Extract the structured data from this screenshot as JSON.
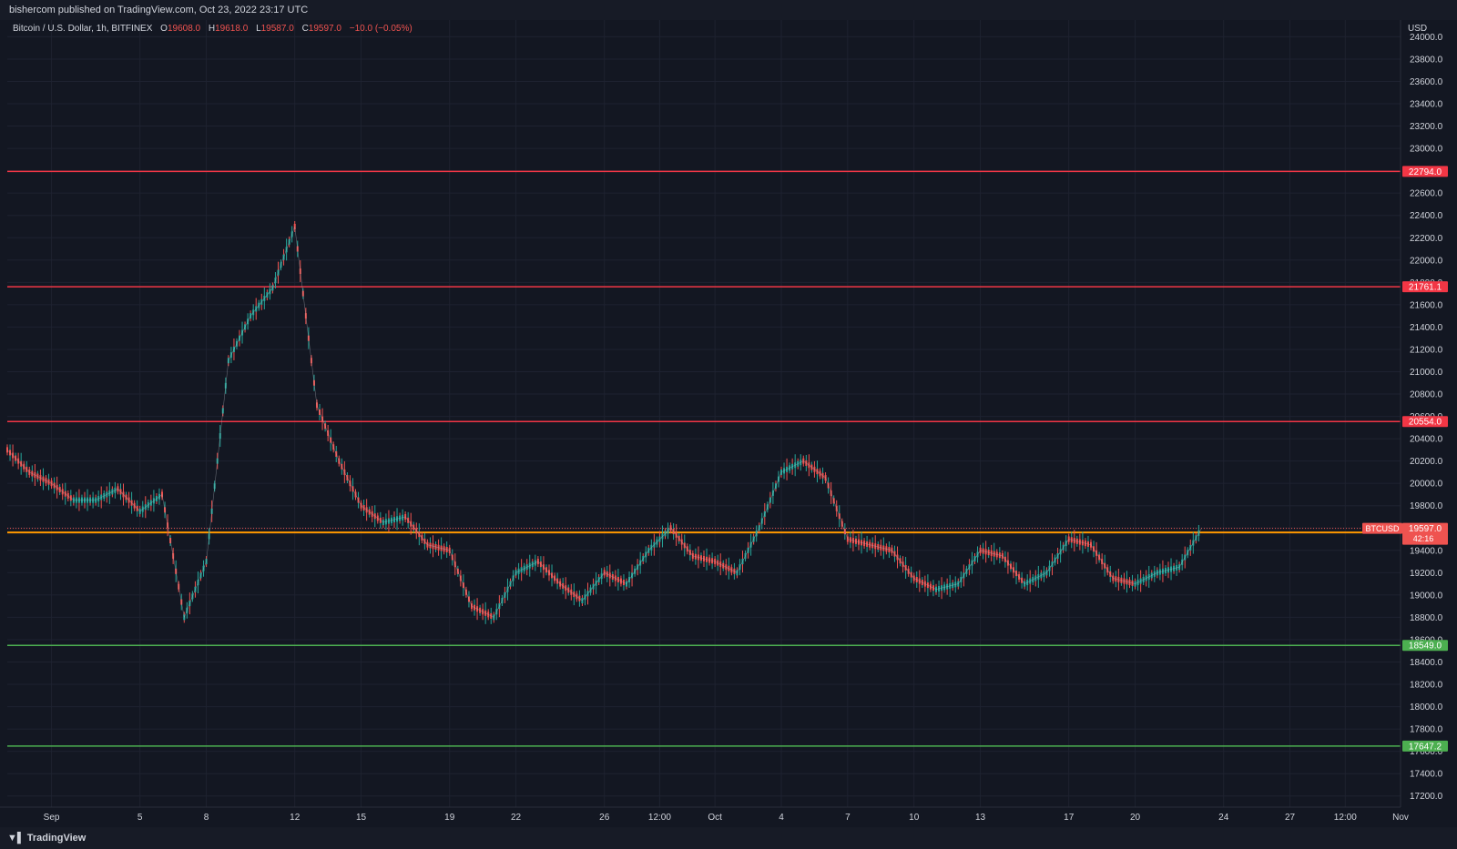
{
  "publisher_line": "bishercom published on TradingView.com, Oct 23, 2022 23:17 UTC",
  "brand": "TradingView",
  "legend": {
    "symbol": "Bitcoin / U.S. Dollar, 1h, BITFINEX",
    "o_label": "O",
    "o_value": "19608.0",
    "h_label": "H",
    "h_value": "19618.0",
    "l_label": "L",
    "l_value": "19587.0",
    "c_label": "C",
    "c_value": "19597.0",
    "change": "−10.0 (−0.05%)"
  },
  "colors": {
    "up": "#26a69a",
    "down": "#ef5350",
    "resistance": "#f23645",
    "support": "#4caf50",
    "mid": "#ff9800",
    "background": "#131722",
    "grid": "#1e2230"
  },
  "chart_data": {
    "type": "line",
    "title": "Bitcoin / U.S. Dollar, 1h, BITFINEX",
    "currency": "USD",
    "x_range": [
      "2022-08-30",
      "2022-11-01"
    ],
    "ylim": [
      17100,
      24150
    ],
    "y_ticks": [
      "17200.0",
      "17400.0",
      "17600.0",
      "17800.0",
      "18000.0",
      "18200.0",
      "18400.0",
      "18600.0",
      "18800.0",
      "19000.0",
      "19200.0",
      "19400.0",
      "19600.0",
      "19800.0",
      "20000.0",
      "20200.0",
      "20400.0",
      "20600.0",
      "20800.0",
      "21000.0",
      "21200.0",
      "21400.0",
      "21600.0",
      "21800.0",
      "22000.0",
      "22200.0",
      "22400.0",
      "22600.0",
      "22800.0",
      "23000.0",
      "23200.0",
      "23400.0",
      "23600.0",
      "23800.0",
      "24000.0"
    ],
    "x_ticks": [
      {
        "date": "2022-09-01",
        "label": "Sep"
      },
      {
        "date": "2022-09-05",
        "label": "5"
      },
      {
        "date": "2022-09-08",
        "label": "8"
      },
      {
        "date": "2022-09-12",
        "label": "12"
      },
      {
        "date": "2022-09-15",
        "label": "15"
      },
      {
        "date": "2022-09-19",
        "label": "19"
      },
      {
        "date": "2022-09-22",
        "label": "22"
      },
      {
        "date": "2022-09-26",
        "label": "26"
      },
      {
        "date": "2022-09-28T12:00",
        "label": "12:00"
      },
      {
        "date": "2022-10-01",
        "label": "Oct"
      },
      {
        "date": "2022-10-04",
        "label": "4"
      },
      {
        "date": "2022-10-07",
        "label": "7"
      },
      {
        "date": "2022-10-10",
        "label": "10"
      },
      {
        "date": "2022-10-13",
        "label": "13"
      },
      {
        "date": "2022-10-17",
        "label": "17"
      },
      {
        "date": "2022-10-20",
        "label": "20"
      },
      {
        "date": "2022-10-24",
        "label": "24"
      },
      {
        "date": "2022-10-27",
        "label": "27"
      },
      {
        "date": "2022-10-29T12:00",
        "label": "12:00"
      },
      {
        "date": "2022-11-01",
        "label": "Nov"
      }
    ],
    "levels": [
      {
        "value": 22794.0,
        "label": "22794.0",
        "kind": "resistance"
      },
      {
        "value": 21761.1,
        "label": "21761.1",
        "kind": "resistance"
      },
      {
        "value": 20554.0,
        "label": "20554.0",
        "kind": "resistance"
      },
      {
        "value": 19560.0,
        "label": "19560.0",
        "kind": "mid"
      },
      {
        "value": 18549.0,
        "label": "18549.0",
        "kind": "support"
      },
      {
        "value": 17647.2,
        "label": "17647.2",
        "kind": "support"
      }
    ],
    "last_price": {
      "value": 19597.0,
      "label": "19597.0",
      "symbol": "BTCUSD",
      "countdown": "42:16"
    },
    "series": [
      {
        "x": [
          "2022-08-30",
          "2022-08-31",
          "2022-09-01",
          "2022-09-02",
          "2022-09-03",
          "2022-09-04",
          "2022-09-05",
          "2022-09-06",
          "2022-09-07",
          "2022-09-08",
          "2022-09-09",
          "2022-09-10",
          "2022-09-11",
          "2022-09-12",
          "2022-09-13",
          "2022-09-14",
          "2022-09-15",
          "2022-09-16",
          "2022-09-17",
          "2022-09-18",
          "2022-09-19",
          "2022-09-20",
          "2022-09-21",
          "2022-09-22",
          "2022-09-23",
          "2022-09-24",
          "2022-09-25",
          "2022-09-26",
          "2022-09-27",
          "2022-09-28",
          "2022-09-29",
          "2022-09-30",
          "2022-10-01",
          "2022-10-02",
          "2022-10-03",
          "2022-10-04",
          "2022-10-05",
          "2022-10-06",
          "2022-10-07",
          "2022-10-08",
          "2022-10-09",
          "2022-10-10",
          "2022-10-11",
          "2022-10-12",
          "2022-10-13",
          "2022-10-14",
          "2022-10-15",
          "2022-10-16",
          "2022-10-17",
          "2022-10-18",
          "2022-10-19",
          "2022-10-20",
          "2022-10-21",
          "2022-10-22",
          "2022-10-23"
        ],
        "values": [
          20300,
          20100,
          20000,
          19850,
          19850,
          19950,
          19750,
          19900,
          18800,
          19300,
          21100,
          21500,
          21750,
          22300,
          20700,
          20200,
          19800,
          19650,
          19700,
          19450,
          19400,
          18900,
          18800,
          19200,
          19300,
          19100,
          18950,
          19200,
          19100,
          19400,
          19600,
          19350,
          19300,
          19200,
          19600,
          20100,
          20200,
          20050,
          19500,
          19450,
          19400,
          19150,
          19050,
          19100,
          19400,
          19350,
          19100,
          19200,
          19500,
          19450,
          19150,
          19100,
          19200,
          19250,
          19597
        ]
      }
    ]
  }
}
